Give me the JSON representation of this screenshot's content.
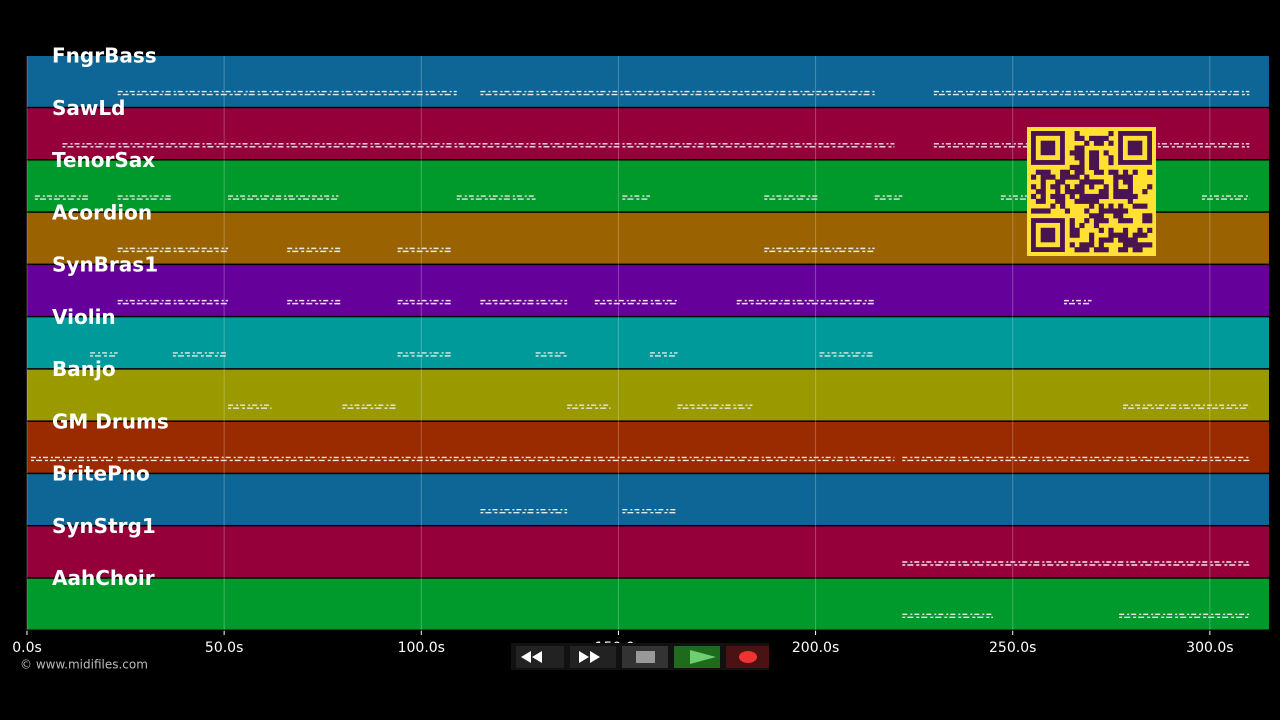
{
  "chart_data": {
    "type": "timeline",
    "xlim": [
      0,
      315
    ],
    "xticks": [
      {
        "value": 0,
        "label": "0.0s"
      },
      {
        "value": 50,
        "label": "50.0s"
      },
      {
        "value": 100,
        "label": "100.0s"
      },
      {
        "value": 150,
        "label": "150.0s"
      },
      {
        "value": 200,
        "label": "200.0s"
      },
      {
        "value": 250,
        "label": "250.0s"
      },
      {
        "value": 300,
        "label": "300.0s"
      }
    ],
    "grid": true,
    "tracks": [
      {
        "name": "FngrBass",
        "color": "#0d6696",
        "segments": [
          [
            23,
            109
          ],
          [
            115,
            215
          ],
          [
            230,
            310
          ]
        ]
      },
      {
        "name": "SawLd",
        "color": "#96003a",
        "segments": [
          [
            9,
            220
          ],
          [
            230,
            310
          ]
        ]
      },
      {
        "name": "TenorSax",
        "color": "#009a2c",
        "segments": [
          [
            2,
            16
          ],
          [
            23,
            37
          ],
          [
            51,
            79
          ],
          [
            109,
            129
          ],
          [
            151,
            158
          ],
          [
            187,
            201
          ],
          [
            215,
            222
          ],
          [
            247,
            254
          ],
          [
            298,
            310
          ]
        ]
      },
      {
        "name": "Acordion",
        "color": "#9a6200",
        "segments": [
          [
            23,
            51
          ],
          [
            66,
            80
          ],
          [
            94,
            108
          ],
          [
            187,
            215
          ]
        ]
      },
      {
        "name": "SynBras1",
        "color": "#66009a",
        "segments": [
          [
            23,
            51
          ],
          [
            66,
            80
          ],
          [
            94,
            108
          ],
          [
            115,
            137
          ],
          [
            144,
            165
          ],
          [
            180,
            215
          ],
          [
            263,
            270
          ]
        ]
      },
      {
        "name": "Violin",
        "color": "#009a9a",
        "segments": [
          [
            16,
            23
          ],
          [
            37,
            51
          ],
          [
            94,
            108
          ],
          [
            129,
            137
          ],
          [
            158,
            165
          ],
          [
            201,
            215
          ]
        ]
      },
      {
        "name": "Banjo",
        "color": "#9a9a00",
        "segments": [
          [
            51,
            62
          ],
          [
            80,
            94
          ],
          [
            137,
            148
          ],
          [
            165,
            184
          ],
          [
            278,
            310
          ]
        ]
      },
      {
        "name": "GM Drums",
        "color": "#9a2b00",
        "segments": [
          [
            1,
            22
          ],
          [
            23,
            220
          ],
          [
            222,
            310
          ]
        ]
      },
      {
        "name": "BritePno",
        "color": "#0d6696",
        "segments": [
          [
            115,
            137
          ],
          [
            151,
            165
          ]
        ]
      },
      {
        "name": "SynStrg1",
        "color": "#96003a",
        "segments": [
          [
            222,
            310
          ]
        ]
      },
      {
        "name": "AahChoir",
        "color": "#009a2c",
        "segments": [
          [
            222,
            245
          ],
          [
            277,
            310
          ]
        ]
      }
    ]
  },
  "footer": {
    "copyright": "© www.midifiles.com"
  }
}
